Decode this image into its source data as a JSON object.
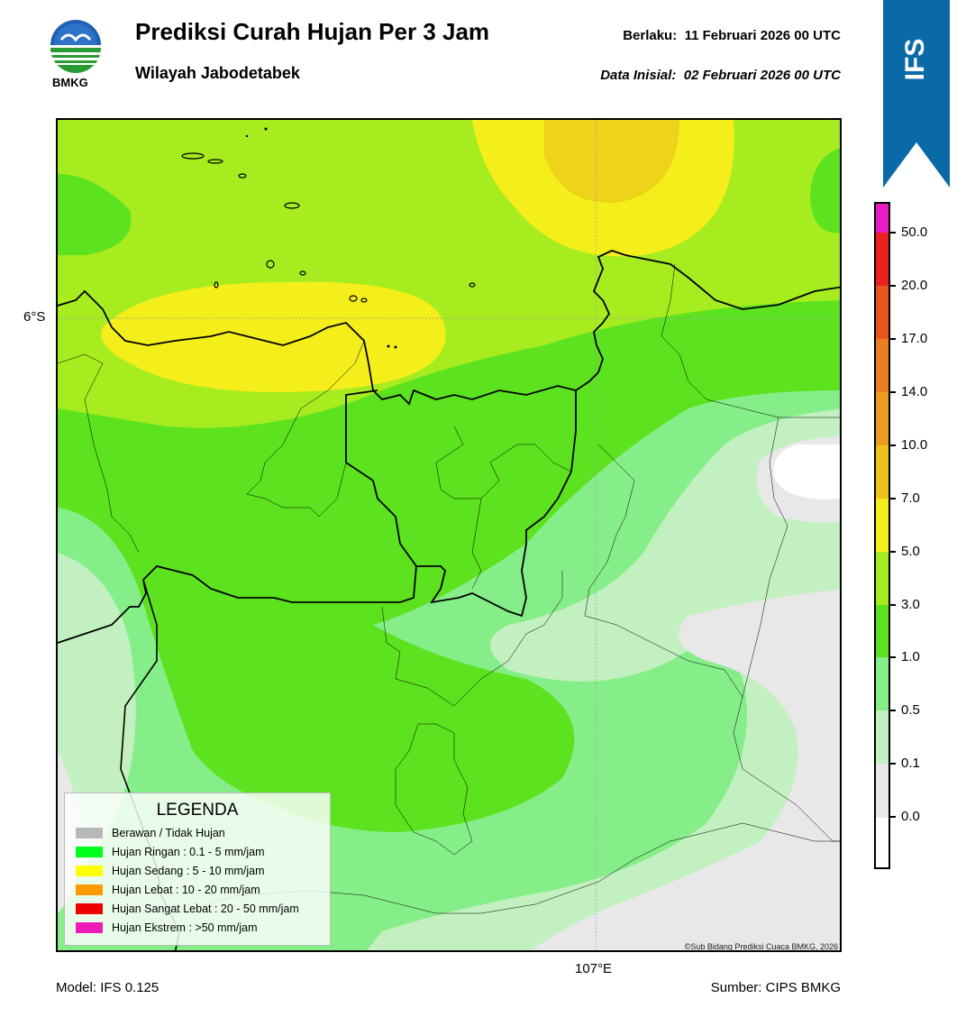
{
  "header": {
    "title": "Prediksi Curah Hujan Per 3 Jam",
    "subtitle": "Wilayah Jabodetabek",
    "valid_label": "Berlaku:",
    "valid_value": "11 Februari 2026 00 UTC",
    "init_label": "Data Inisial:",
    "init_value": "02 Februari 2026 00 UTC",
    "logo_text": "BMKG"
  },
  "badge": {
    "text": "IFS",
    "color": "#0a6aa8"
  },
  "map": {
    "lat_label": "6°S",
    "lon_label": "107°E",
    "copyright": "©Sub Bidang Prediksi Cuaca BMKG, 2026"
  },
  "legend": {
    "title": "LEGENDA",
    "items": [
      {
        "label": "Berawan / Tidak Hujan",
        "color": "#b8b8b8"
      },
      {
        "label": "Hujan Ringan : 0.1 - 5 mm/jam",
        "color": "#00ff1a"
      },
      {
        "label": "Hujan Sedang : 5 - 10 mm/jam",
        "color": "#ffff00"
      },
      {
        "label": "Hujan Lebat : 10 - 20 mm/jam",
        "color": "#ff9900"
      },
      {
        "label": "Hujan Sangat Lebat : 20 - 50 mm/jam",
        "color": "#ee0000"
      },
      {
        "label": "Hujan Ekstrem : >50 mm/jam",
        "color": "#ee1bb8"
      }
    ]
  },
  "colorbar": {
    "ticks": [
      "50.0",
      "20.0",
      "17.0",
      "14.0",
      "10.0",
      "7.0",
      "5.0",
      "3.0",
      "1.0",
      "0.5",
      "0.1",
      "0.0"
    ],
    "colors_top_to_bottom": [
      "#e81cc0",
      "#e8221e",
      "#e8561f",
      "#ea7f22",
      "#eb9c20",
      "#efc21a",
      "#f4ee1a",
      "#a6ec1e",
      "#5ce21e",
      "#86ee88",
      "#c2f0c0",
      "#e8e8e8"
    ]
  },
  "footer": {
    "model": "Model: IFS 0.125",
    "source": "Sumber: CIPS BMKG"
  }
}
